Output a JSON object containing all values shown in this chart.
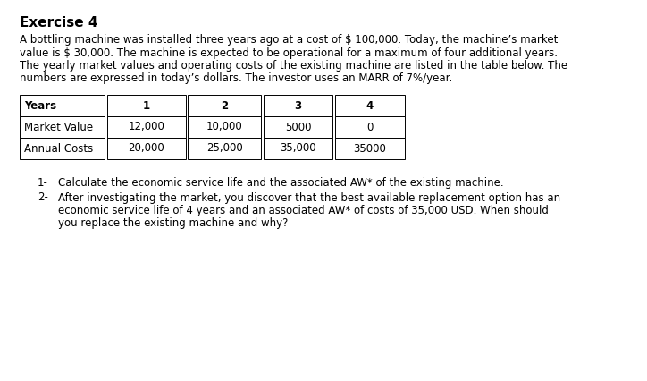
{
  "title": "Exercise 4",
  "paragraph_lines": [
    "A bottling machine was installed three years ago at a cost of $ 100,000. Today, the machine’s market",
    "value is $ 30,000. The machine is expected to be operational for a maximum of four additional years.",
    "The yearly market values and operating costs of the existing machine are listed in the table below. The",
    "numbers are expressed in today’s dollars. The investor uses an MARR of 7%/year."
  ],
  "table_headers": [
    "Years",
    "1",
    "2",
    "3",
    "4"
  ],
  "table_rows": [
    [
      "Market Value",
      "12,000",
      "10,000",
      "5000",
      "0"
    ],
    [
      "Annual Costs",
      "20,000",
      "25,000",
      "35,000",
      "35000"
    ]
  ],
  "q1_prefix": "1-",
  "q1_text": "Calculate the economic service life and the associated AW* of the existing machine.",
  "q2_prefix": "2-",
  "q2_lines": [
    "After investigating the market, you discover that the best available replacement option has an",
    "economic service life of 4 years and an associated AW* of costs of 35,000 USD. When should",
    "you replace the existing machine and why?"
  ],
  "bg_color": "#ffffff",
  "text_color": "#000000",
  "title_fontsize": 11,
  "body_fontsize": 8.5,
  "table_fontsize": 8.5
}
